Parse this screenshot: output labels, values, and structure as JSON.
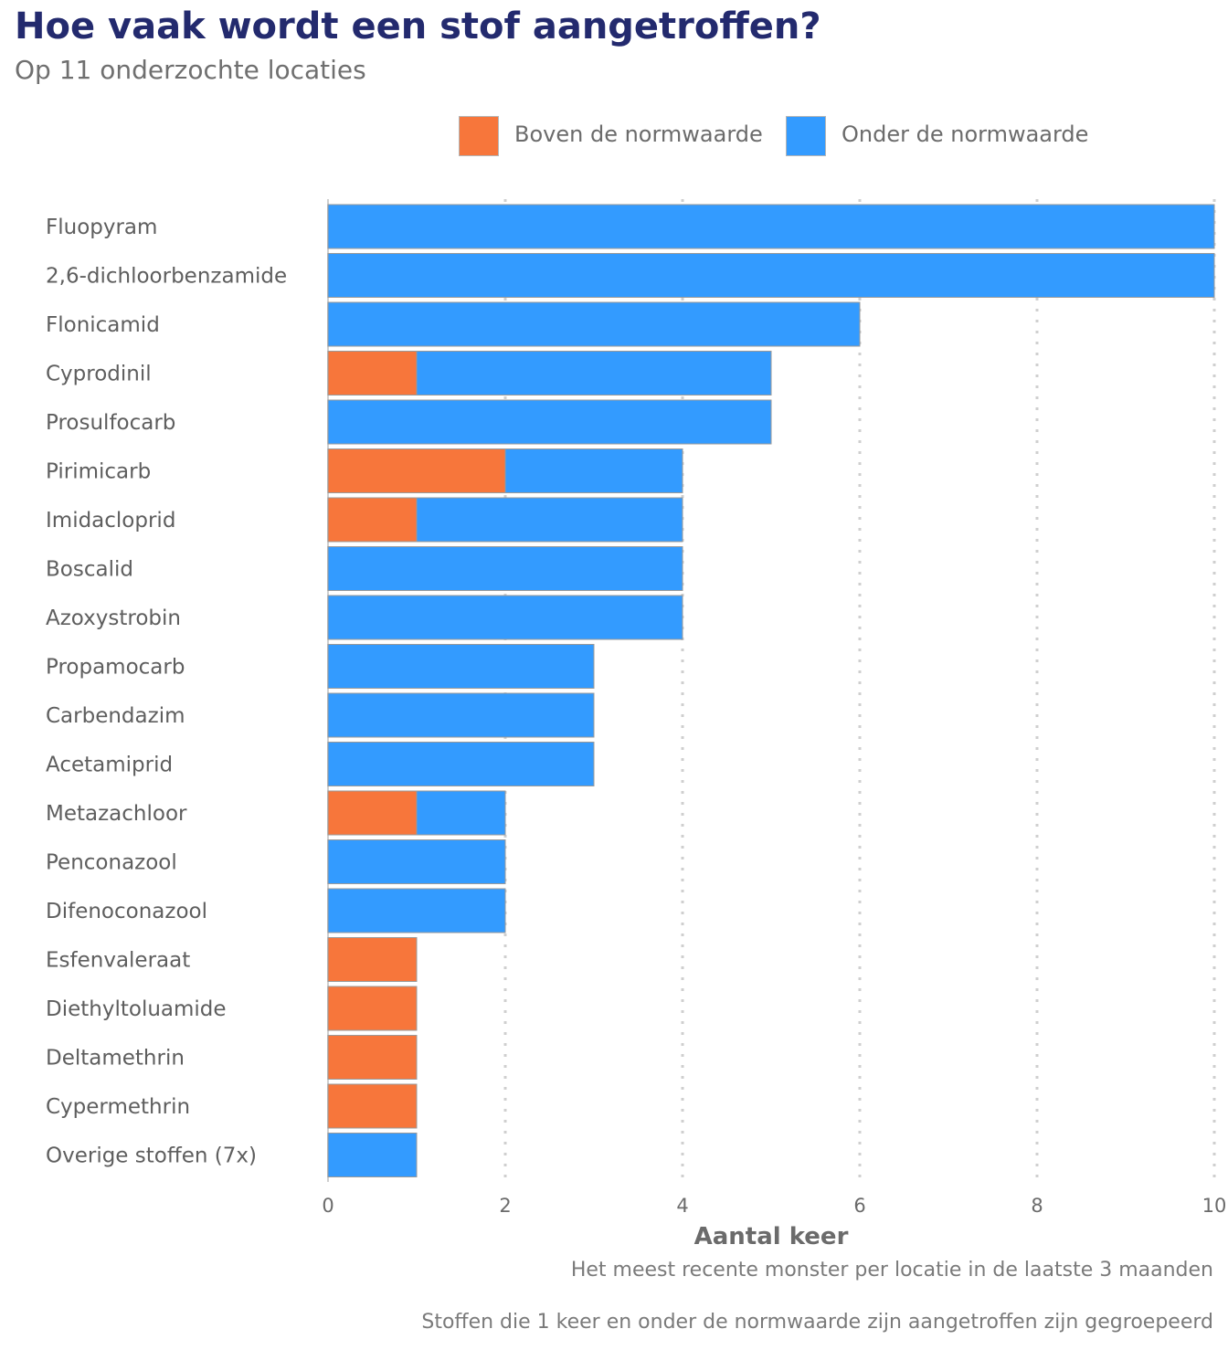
{
  "header": {
    "title": "Hoe vaak wordt een stof aangetroffen?",
    "subtitle": "Op 11 onderzochte locaties"
  },
  "legend": {
    "above": {
      "label": "Boven de normwaarde",
      "color": "#f7763b"
    },
    "below": {
      "label": "Onder de normwaarde",
      "color": "#339bff"
    }
  },
  "chart_data": {
    "type": "bar",
    "orientation": "horizontal",
    "stacked": true,
    "title": "Hoe vaak wordt een stof aangetroffen?",
    "xlabel": "Aantal keer",
    "ylabel": "",
    "xlim": [
      0,
      10
    ],
    "xticks": [
      0,
      2,
      4,
      6,
      8,
      10
    ],
    "grid": "vertical dotted",
    "legend_position": "top-right",
    "categories": [
      "Fluopyram",
      "2,6-dichloorbenzamide",
      "Flonicamid",
      "Cyprodinil",
      "Prosulfocarb",
      "Pirimicarb",
      "Imidacloprid",
      "Boscalid",
      "Azoxystrobin",
      "Propamocarb",
      "Carbendazim",
      "Acetamiprid",
      "Metazachloor",
      "Penconazool",
      "Difenoconazool",
      "Esfenvaleraat",
      "Diethyltoluamide",
      "Deltamethrin",
      "Cypermethrin",
      "Overige stoffen (7x)"
    ],
    "series": [
      {
        "name": "Boven de normwaarde",
        "color": "#f7763b",
        "values": [
          0,
          0,
          0,
          1,
          0,
          2,
          1,
          0,
          0,
          0,
          0,
          0,
          1,
          0,
          0,
          1,
          1,
          1,
          1,
          0
        ]
      },
      {
        "name": "Onder de normwaarde",
        "color": "#339bff",
        "values": [
          10,
          10,
          6,
          4,
          5,
          2,
          3,
          4,
          4,
          3,
          3,
          3,
          1,
          2,
          2,
          0,
          0,
          0,
          0,
          1
        ]
      }
    ]
  },
  "notes": {
    "line1": "Het meest recente monster per locatie in de laatste 3 maanden",
    "line2": "Stoffen die 1 keer en onder de normwaarde zijn aangetroffen zijn gegroepeerd"
  }
}
